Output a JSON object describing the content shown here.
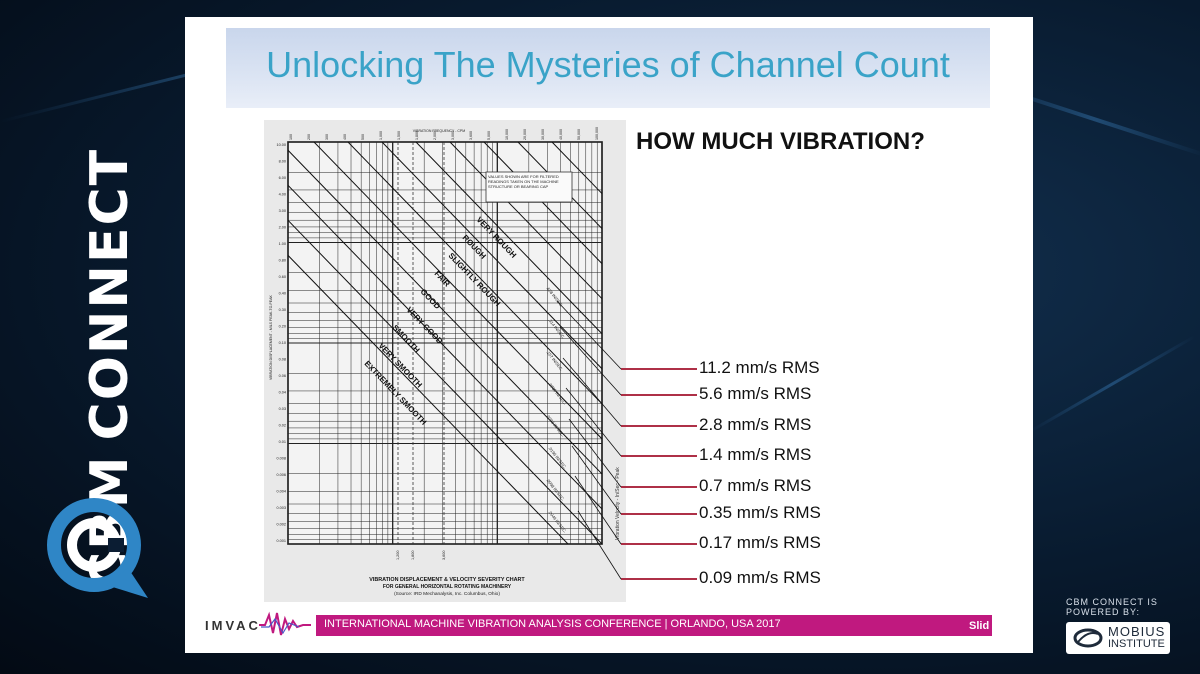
{
  "brand": {
    "name_part1": "CBM",
    "name_part2": "CONNECT",
    "trademark": "TM",
    "powered_by_line1": "CBM CONNECT IS",
    "powered_by_line2": "POWERED BY:",
    "mobius_line1": "MOBIUS",
    "mobius_line2": "INSTITUTE"
  },
  "slide": {
    "title": "Unlocking The Mysteries of Channel Count",
    "subtitle": "HOW MUCH VIBRATION?",
    "rms_labels": [
      "11.2 mm/s RMS",
      "5.6 mm/s RMS",
      "2.8 mm/s RMS",
      "1.4 mm/s RMS",
      "0.7 mm/s RMS",
      "0.35 mm/s RMS",
      "0.17 mm/s RMS",
      "0.09 mm/s RMS"
    ],
    "footer": {
      "logo_text": "IMVAC",
      "conference": "INTERNATIONAL MACHINE VIBRATION ANALYSIS CONFERENCE  |  ORLANDO, USA  2017",
      "slide_label": "Slid"
    }
  },
  "chart": {
    "top_axis_title": "VIBRATION FREQUENCY - CPM",
    "top_ticks": [
      "100",
      "200",
      "300",
      "400",
      "500",
      "1,000",
      "1,500",
      "1,800",
      "2,000",
      "3,000",
      "3,600",
      "5,000",
      "10,000",
      "20,000",
      "30,000",
      "40,000",
      "50,000",
      "100,000"
    ],
    "left_axis_title": "VIBRATION DISPLACEMENT - MILS PEAK-TO-PEAK",
    "left_ticks": [
      "10.00",
      "8.00",
      "6.00",
      "4.00",
      "3.00",
      "2.00",
      "1.00",
      "0.80",
      "0.60",
      "0.40",
      "0.30",
      "0.20",
      "0.10",
      "0.08",
      "0.06",
      "0.04",
      "0.03",
      "0.02",
      "0.01",
      "0.008",
      "0.006",
      "0.004",
      "0.003",
      "0.002",
      "0.001"
    ],
    "bottom_ticks": [
      "1,200",
      "1,800",
      "3,600"
    ],
    "note": "VALUES SHOWN ARE FOR FILTERED READINGS TAKEN ON THE MACHINE STRUCTURE OR BEARING CAP",
    "severity_bands": [
      "VERY ROUGH",
      "ROUGH",
      "SLIGHTLY ROUGH",
      "FAIR",
      "GOOD",
      "VERY GOOD",
      "SMOOTH",
      "VERY SMOOTH",
      "EXTREMELY SMOOTH"
    ],
    "velocity_lines": [
      ".628 IN/SEC.",
      ".314 IN/SEC.",
      ".157 IN/SEC.",
      ".0785 IN/SEC.",
      ".0393 IN/SEC.",
      ".0196 IN/SEC.",
      ".0098 IN/SEC.",
      ".0049 IN/SEC."
    ],
    "right_axis_title": "Vibration Velocity - In/Sec - Peak",
    "caption_line1": "VIBRATION DISPLACEMENT & VELOCITY SEVERITY CHART",
    "caption_line2": "FOR GENERAL HORIZONTAL ROTATING MACHINERY",
    "caption_line3": "(Source: IRD Mechanalysis, Inc. Columbus, Ohio)"
  },
  "colors": {
    "title": "#3aa3c8",
    "connector": "#a3132d",
    "footer_bar": "#c0197f"
  }
}
